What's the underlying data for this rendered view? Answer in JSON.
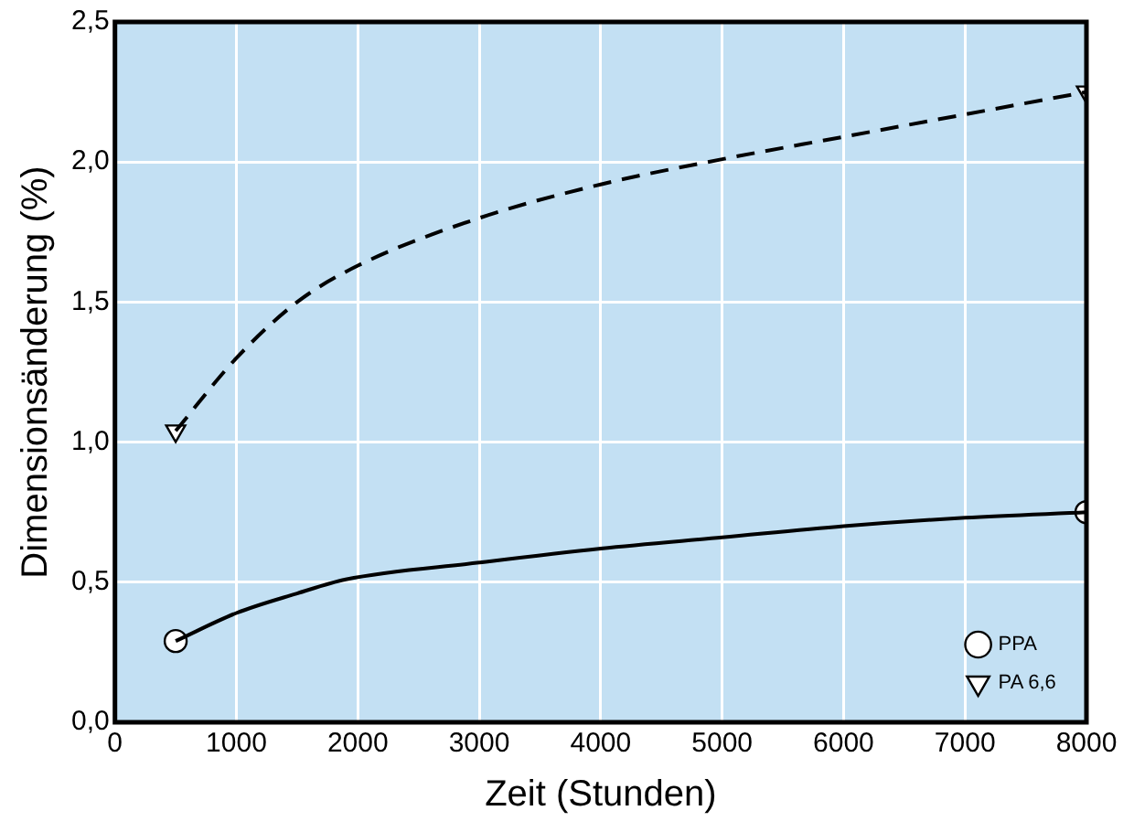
{
  "chart_data": {
    "type": "line",
    "xlabel": "Zeit (Stunden)",
    "ylabel": "Dimensionsänderung (%)",
    "xlim": [
      0,
      8000
    ],
    "xticks": [
      0,
      1000,
      2000,
      3000,
      4000,
      5000,
      6000,
      7000,
      8000
    ],
    "ylim": [
      0,
      2.5
    ],
    "yticks": [
      {
        "value": 0,
        "label": "0,0"
      },
      {
        "value": 0.5,
        "label": "0,5"
      },
      {
        "value": 1,
        "label": "1,0"
      },
      {
        "value": 1.5,
        "label": "1,5"
      },
      {
        "value": 2,
        "label": "2,0"
      },
      {
        "value": 2.5,
        "label": "2,5"
      }
    ],
    "grid": true,
    "legend": "bottom right",
    "series": [
      {
        "name": "PPA",
        "color": "#000000",
        "line_style": "solid",
        "x": [
          500,
          1000,
          1500,
          1900,
          3000,
          4000,
          5000,
          6000,
          7000,
          8000
        ],
        "values": [
          0.29,
          0.39,
          0.46,
          0.51,
          0.57,
          0.62,
          0.66,
          0.7,
          0.73,
          0.75
        ]
      },
      {
        "type": "scatter",
        "color": "#000000",
        "marker": "circle",
        "x": [
          500,
          8000
        ],
        "values": [
          0.29,
          0.75
        ]
      },
      {
        "name": "PA 6,6",
        "color": "#000000",
        "line_style": "dashed",
        "x": [
          500,
          1000,
          1500,
          2000,
          3000,
          4000,
          5000,
          6000,
          7000,
          8000
        ],
        "values": [
          1.04,
          1.3,
          1.5,
          1.63,
          1.8,
          1.92,
          2.01,
          2.09,
          2.17,
          2.25
        ]
      },
      {
        "type": "scatter",
        "color": "#000000",
        "marker": "triangle",
        "x": [
          500,
          8000
        ],
        "values": [
          1.04,
          2.25
        ]
      }
    ]
  }
}
